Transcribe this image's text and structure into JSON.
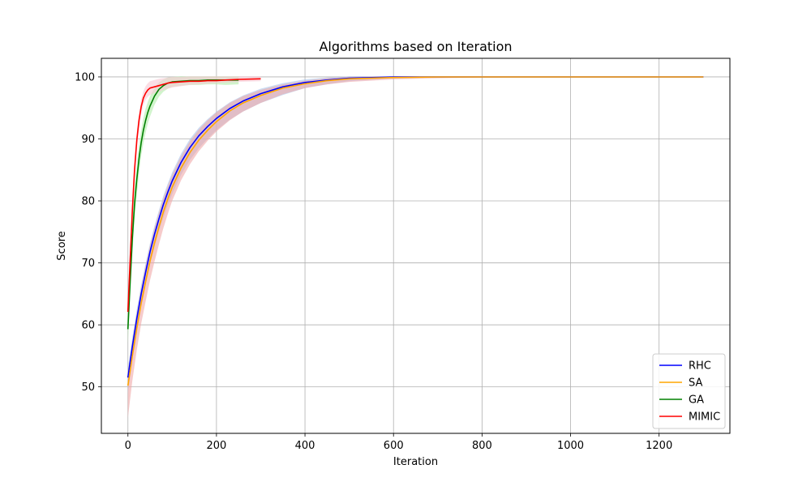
{
  "chart_data": {
    "type": "line",
    "title": "Algorithms based on Iteration",
    "xlabel": "Iteration",
    "ylabel": "Score",
    "xlim": [
      -60,
      1360
    ],
    "ylim": [
      42.5,
      103
    ],
    "xticks": [
      0,
      200,
      400,
      600,
      800,
      1000,
      1200
    ],
    "yticks": [
      50,
      60,
      70,
      80,
      90,
      100
    ],
    "grid": true,
    "legend_position": "lower-right",
    "series": [
      {
        "name": "RHC",
        "color": "#0000ff",
        "band_color": "#a9c3ea",
        "x": [
          0,
          10,
          20,
          30,
          40,
          50,
          60,
          70,
          80,
          90,
          100,
          120,
          140,
          160,
          180,
          200,
          230,
          260,
          300,
          350,
          400,
          450,
          500,
          600,
          700,
          800,
          1000,
          1200,
          1300
        ],
        "y": [
          51.5,
          56.5,
          61,
          65,
          68.5,
          71.8,
          74.6,
          77.1,
          79.4,
          81.4,
          83.2,
          86.2,
          88.6,
          90.5,
          92,
          93.3,
          94.9,
          96.1,
          97.3,
          98.4,
          99.1,
          99.5,
          99.8,
          100,
          100,
          100,
          100,
          100,
          100
        ],
        "y_upper": [
          53,
          58,
          62.5,
          66.5,
          70,
          73.2,
          76,
          78.5,
          80.8,
          82.8,
          84.6,
          87.6,
          90,
          91.8,
          93.2,
          94.4,
          95.9,
          97,
          98.1,
          99,
          99.6,
          99.9,
          100.1,
          100.1,
          100.1,
          100.1,
          100.1,
          100.1,
          100.1
        ],
        "y_lower": [
          49,
          54.5,
          59,
          63,
          66.5,
          69.8,
          72.6,
          75.1,
          77.3,
          79.3,
          81.1,
          84.2,
          86.6,
          88.5,
          90,
          91.4,
          93.1,
          94.4,
          95.8,
          97.1,
          98.2,
          98.8,
          99.3,
          99.8,
          99.9,
          100,
          100,
          100,
          100
        ]
      },
      {
        "name": "SA",
        "color": "#ffa500",
        "band_color": "#f0a8a8",
        "x": [
          0,
          10,
          20,
          30,
          40,
          50,
          60,
          70,
          80,
          90,
          100,
          120,
          140,
          160,
          180,
          200,
          230,
          260,
          300,
          350,
          400,
          450,
          500,
          600,
          700,
          800,
          1000,
          1200,
          1300
        ],
        "y": [
          50.2,
          55,
          59.5,
          63.5,
          67,
          70.3,
          73.2,
          75.8,
          78.2,
          80.3,
          82.2,
          85.3,
          87.8,
          89.8,
          91.4,
          92.8,
          94.5,
          95.8,
          97,
          98.2,
          98.9,
          99.4,
          99.7,
          99.9,
          100,
          100,
          100,
          100,
          100
        ],
        "y_upper": [
          52.5,
          57.5,
          62,
          66,
          69.6,
          72.8,
          75.6,
          78.1,
          80.4,
          82.4,
          84.2,
          87.2,
          89.6,
          91.5,
          93,
          94.3,
          95.8,
          96.9,
          97.9,
          98.8,
          99.4,
          99.8,
          100,
          100.1,
          100.1,
          100.1,
          100.1,
          100.1,
          100.1
        ],
        "y_lower": [
          45,
          51,
          56,
          60.2,
          63.8,
          67.2,
          70.2,
          73,
          75.6,
          77.9,
          80,
          83.3,
          85.9,
          88,
          89.7,
          91.2,
          93,
          94.4,
          95.8,
          97.2,
          98.2,
          98.8,
          99.2,
          99.6,
          99.8,
          99.9,
          100,
          100,
          100
        ]
      },
      {
        "name": "GA",
        "color": "#008000",
        "band_color": "#b2ecaa",
        "x": [
          0,
          5,
          10,
          15,
          20,
          25,
          30,
          35,
          40,
          45,
          50,
          60,
          70,
          80,
          90,
          100,
          120,
          140,
          160,
          180,
          200,
          220,
          250
        ],
        "y": [
          59.3,
          67,
          74,
          79.5,
          83.5,
          86.8,
          89.4,
          91.4,
          93,
          94.3,
          95.3,
          96.9,
          98,
          98.6,
          99,
          99.2,
          99.3,
          99.4,
          99.4,
          99.5,
          99.5,
          99.5,
          99.5
        ],
        "y_upper": [
          61.5,
          69.5,
          76.5,
          82,
          85.8,
          89,
          91.5,
          93.4,
          94.9,
          96,
          96.9,
          98.2,
          99.1,
          99.6,
          99.9,
          100,
          100.1,
          100.1,
          100.1,
          100.1,
          100.1,
          100.1,
          100.1
        ],
        "y_lower": [
          57,
          64.5,
          71.5,
          77,
          81,
          84.5,
          87.2,
          89.3,
          91,
          92.5,
          93.6,
          95.5,
          96.8,
          97.6,
          98.1,
          98.4,
          98.6,
          98.7,
          98.7,
          98.8,
          98.8,
          98.7,
          98.8
        ]
      },
      {
        "name": "MIMIC",
        "color": "#ff0000",
        "band_color": "#f7c8d4",
        "x": [
          0,
          5,
          10,
          15,
          20,
          25,
          30,
          35,
          40,
          45,
          50,
          60,
          70,
          80,
          90,
          100,
          120,
          140,
          160,
          180,
          200,
          220,
          250,
          300
        ],
        "y": [
          62.1,
          70.5,
          78.5,
          85,
          89.8,
          93,
          95.2,
          96.6,
          97.4,
          97.9,
          98.2,
          98.4,
          98.6,
          98.8,
          99,
          99.1,
          99.2,
          99.3,
          99.3,
          99.4,
          99.4,
          99.5,
          99.6,
          99.7
        ],
        "y_upper": [
          63.5,
          72,
          80,
          86.5,
          91.2,
          94.3,
          96.4,
          97.7,
          98.5,
          99,
          99.3,
          99.5,
          99.7,
          99.8,
          99.9,
          100,
          100,
          100.1,
          100.1,
          100.1,
          100.1,
          100.1,
          100.1,
          100.1
        ],
        "y_lower": [
          60.5,
          69,
          77,
          83.5,
          88.3,
          91.7,
          94,
          95.5,
          96.3,
          96.8,
          97.1,
          97.4,
          97.6,
          97.9,
          98.1,
          98.3,
          98.5,
          98.7,
          98.8,
          98.9,
          99,
          99.1,
          99.2,
          99.3
        ]
      }
    ]
  }
}
